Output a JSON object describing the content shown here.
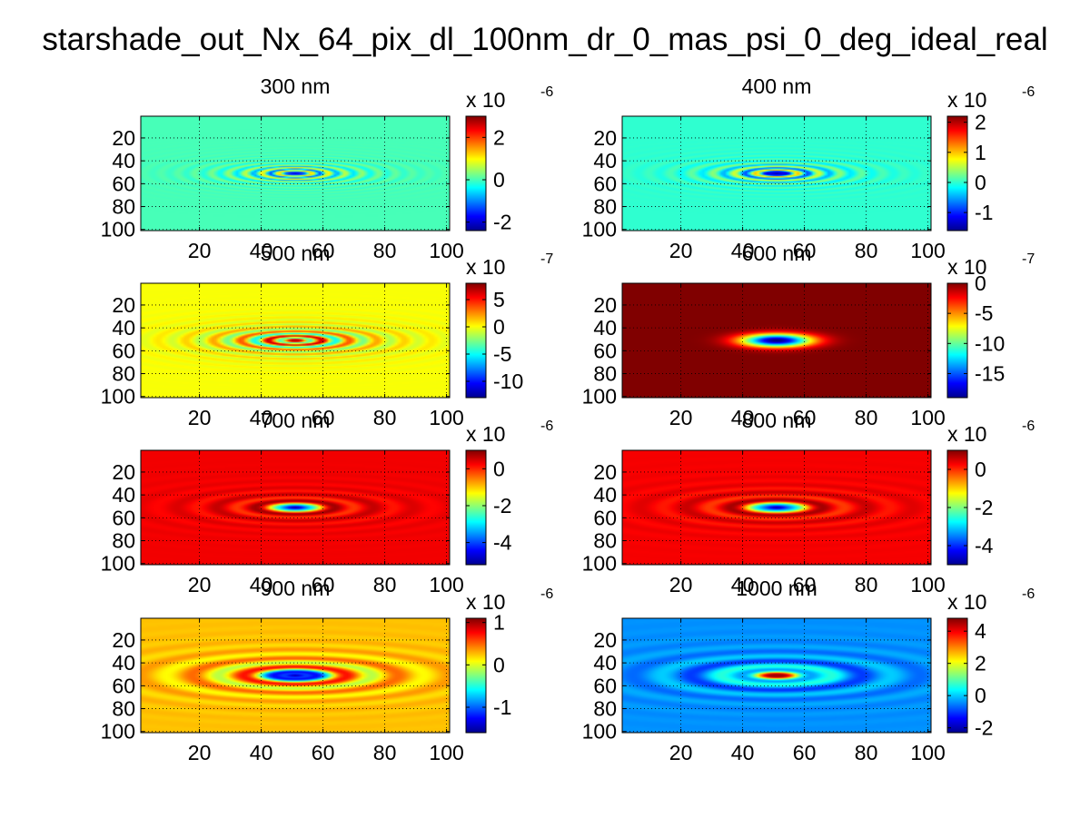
{
  "figure_title": "starshade_out_Nx_64_pix_dl_100nm_dr_0_mas_psi_0_deg_ideal_real",
  "colors": {
    "jet": [
      "#00008f",
      "#0000ff",
      "#00ffff",
      "#ffff00",
      "#ff0000",
      "#800000"
    ],
    "grid": "#000000",
    "background": "#ffffff"
  },
  "chart_data": [
    {
      "type": "heatmap",
      "title": "300 nm",
      "x_ticks": [
        20,
        40,
        60,
        80,
        100
      ],
      "y_ticks": [
        20,
        40,
        60,
        80,
        100
      ],
      "xlim": [
        1,
        101
      ],
      "ylim": [
        1,
        101
      ],
      "grid": true,
      "colorbar": {
        "exponent": "x 10",
        "power": "-6",
        "ticks": [
          -2,
          0,
          2
        ],
        "range": [
          -2.4,
          3.0
        ]
      },
      "field": {
        "center": [
          51,
          51
        ],
        "bg": 0,
        "center_value": -2.0,
        "ring_wavelength": 5.5,
        "amp": 2.6,
        "decay": 12,
        "ellipse_ratio": 2.2
      }
    },
    {
      "type": "heatmap",
      "title": "400 nm",
      "x_ticks": [
        20,
        40,
        60,
        80,
        100
      ],
      "y_ticks": [
        20,
        40,
        60,
        80,
        100
      ],
      "xlim": [
        1,
        101
      ],
      "ylim": [
        1,
        101
      ],
      "grid": true,
      "colorbar": {
        "exponent": "x 10",
        "power": "-6",
        "ticks": [
          -1,
          0,
          1,
          2
        ],
        "range": [
          -1.6,
          2.2
        ]
      },
      "field": {
        "center": [
          51,
          51
        ],
        "bg": 0,
        "center_value": -1.5,
        "ring_wavelength": 7,
        "amp": 2.0,
        "decay": 12,
        "ellipse_ratio": 2.2
      }
    },
    {
      "type": "heatmap",
      "title": "500 nm",
      "x_ticks": [
        20,
        40,
        60,
        80,
        100
      ],
      "y_ticks": [
        20,
        40,
        60,
        80,
        100
      ],
      "xlim": [
        1,
        101
      ],
      "ylim": [
        1,
        101
      ],
      "grid": true,
      "colorbar": {
        "exponent": "x 10",
        "power": "-7",
        "ticks": [
          -10,
          -5,
          0,
          5
        ],
        "range": [
          -13,
          8
        ]
      },
      "field": {
        "center": [
          51,
          51
        ],
        "bg": 0,
        "center_value": 7,
        "ring_wavelength": 9,
        "amp": 12,
        "decay": 15,
        "ellipse_ratio": 2.2
      }
    },
    {
      "type": "heatmap",
      "title": "600 nm",
      "x_ticks": [
        20,
        40,
        60,
        80,
        100
      ],
      "y_ticks": [
        20,
        40,
        60,
        80,
        100
      ],
      "xlim": [
        1,
        101
      ],
      "ylim": [
        1,
        101
      ],
      "grid": true,
      "colorbar": {
        "exponent": "x 10",
        "power": "-7",
        "ticks": [
          -15,
          -10,
          -5,
          0
        ],
        "range": [
          -19,
          0
        ]
      },
      "field": {
        "center": [
          51,
          51
        ],
        "bg": 0,
        "center_value": -19,
        "ring_wavelength": 0,
        "amp": 0,
        "decay": 0,
        "gauss_width": 8,
        "ellipse_ratio": 2.0
      }
    },
    {
      "type": "heatmap",
      "title": "700 nm",
      "x_ticks": [
        20,
        40,
        60,
        80,
        100
      ],
      "y_ticks": [
        20,
        40,
        60,
        80,
        100
      ],
      "xlim": [
        1,
        101
      ],
      "ylim": [
        1,
        101
      ],
      "grid": true,
      "colorbar": {
        "exponent": "x 10",
        "power": "-6",
        "ticks": [
          -4,
          -2,
          0
        ],
        "range": [
          -5.2,
          1.0
        ]
      },
      "field": {
        "center": [
          51,
          51
        ],
        "bg": 0.3,
        "center_value": -5.0,
        "ring_wavelength": 13,
        "amp": 1.2,
        "decay": 18,
        "ellipse_ratio": 2.2
      }
    },
    {
      "type": "heatmap",
      "title": "800 nm",
      "x_ticks": [
        20,
        40,
        60,
        80,
        100
      ],
      "y_ticks": [
        20,
        40,
        60,
        80,
        100
      ],
      "xlim": [
        1,
        101
      ],
      "ylim": [
        1,
        101
      ],
      "grid": true,
      "colorbar": {
        "exponent": "x 10",
        "power": "-6",
        "ticks": [
          -4,
          -2,
          0
        ],
        "range": [
          -5.0,
          1.0
        ]
      },
      "field": {
        "center": [
          51,
          51
        ],
        "bg": 0.3,
        "center_value": -4.8,
        "ring_wavelength": 15,
        "amp": 1.2,
        "decay": 20,
        "ellipse_ratio": 2.2
      }
    },
    {
      "type": "heatmap",
      "title": "900 nm",
      "x_ticks": [
        20,
        40,
        60,
        80,
        100
      ],
      "y_ticks": [
        20,
        40,
        60,
        80,
        100
      ],
      "xlim": [
        1,
        101
      ],
      "ylim": [
        1,
        101
      ],
      "grid": true,
      "colorbar": {
        "exponent": "x 10",
        "power": "-6",
        "ticks": [
          -1,
          0,
          1
        ],
        "range": [
          -1.6,
          1.1
        ]
      },
      "field": {
        "center": [
          51,
          51
        ],
        "bg": 0.25,
        "center_value": -1.5,
        "ring_wavelength": 17,
        "amp": 1.1,
        "decay": 22,
        "ellipse_ratio": 2.2
      }
    },
    {
      "type": "heatmap",
      "title": "1000 nm",
      "x_ticks": [
        20,
        40,
        60,
        80,
        100
      ],
      "y_ticks": [
        20,
        40,
        60,
        80,
        100
      ],
      "xlim": [
        1,
        101
      ],
      "ylim": [
        1,
        101
      ],
      "grid": true,
      "colorbar": {
        "exponent": "x 10",
        "power": "-6",
        "ticks": [
          -2,
          0,
          2,
          4
        ],
        "range": [
          -2.3,
          4.8
        ]
      },
      "field": {
        "center": [
          51,
          51
        ],
        "bg": -0.4,
        "center_value": 4.5,
        "ring_wavelength": 19,
        "amp": 2.0,
        "decay": 24,
        "ellipse_ratio": 2.2
      }
    }
  ]
}
